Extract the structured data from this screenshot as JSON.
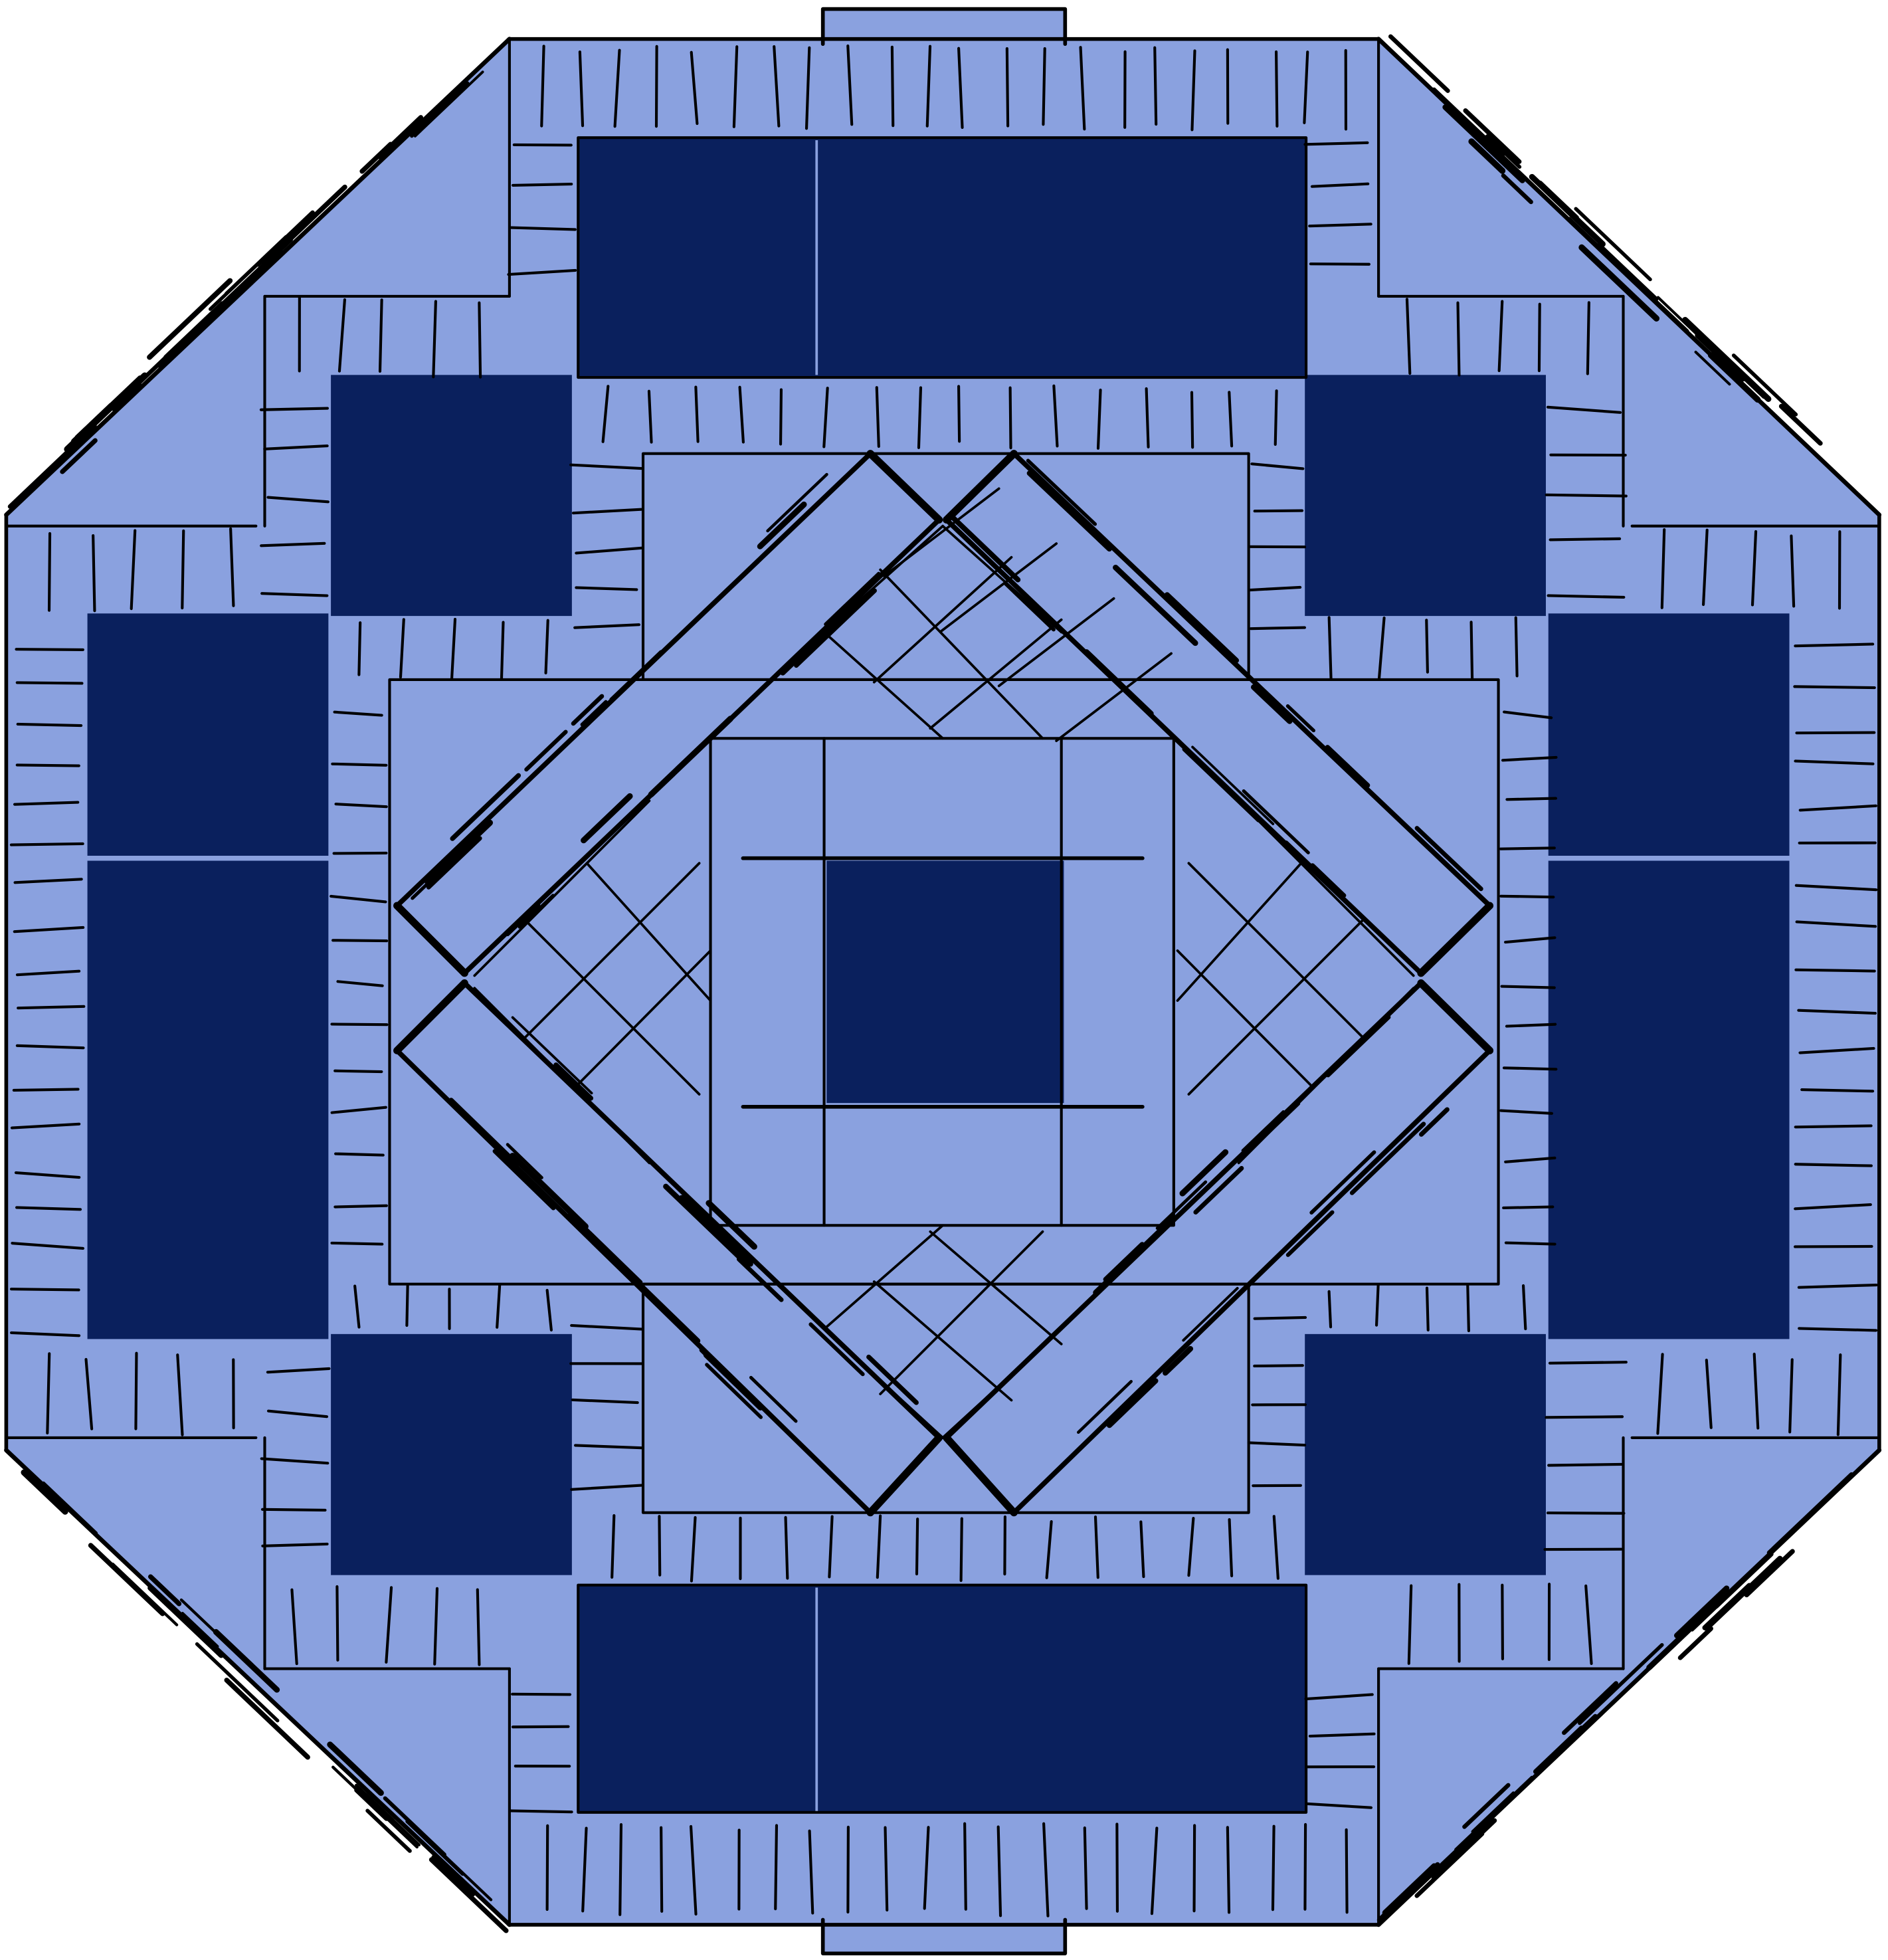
{
  "artwork": {
    "subject": "",
    "colors": {
      "light_fill": "#8aa1df",
      "dark_fill": "#0a205d",
      "outline": "#000000",
      "background": "#ffffff"
    }
  }
}
